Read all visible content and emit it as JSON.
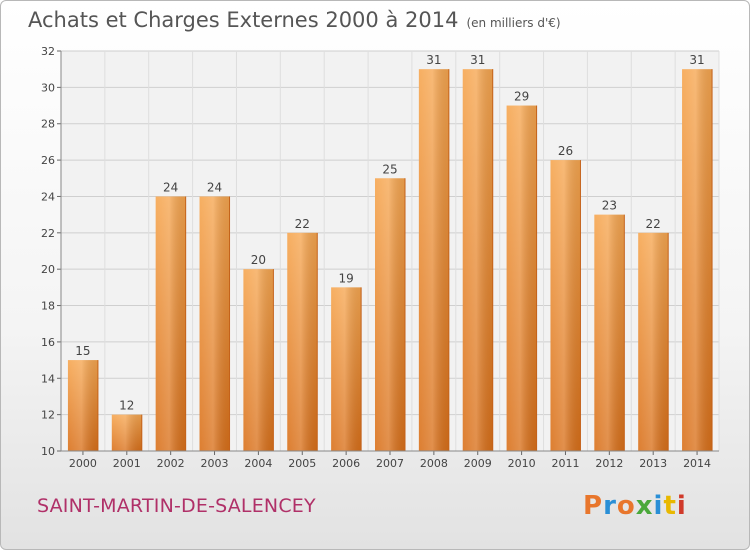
{
  "header": {
    "title": "Achats et Charges Externes 2000 à 2014",
    "unit": "(en milliers d'€)"
  },
  "footer": {
    "commune": "SAINT-MARTIN-DE-SALENCEY",
    "logo_text": "Proxiti",
    "logo_colors": [
      "#e8762c",
      "#2a8fd6",
      "#e8762c",
      "#4aa83a",
      "#2a8fd6",
      "#e8b800",
      "#d03a2a"
    ]
  },
  "chart_data": {
    "type": "bar",
    "title": "Achats et Charges Externes 2000 à 2014",
    "subtitle": "(en milliers d'€)",
    "categories": [
      "2000",
      "2001",
      "2002",
      "2003",
      "2004",
      "2005",
      "2006",
      "2007",
      "2008",
      "2009",
      "2010",
      "2011",
      "2012",
      "2013",
      "2014"
    ],
    "values": [
      15,
      12,
      24,
      24,
      20,
      22,
      19,
      25,
      31,
      31,
      29,
      26,
      23,
      22,
      31
    ],
    "ylim": [
      10,
      32
    ],
    "yticks": [
      10,
      12,
      14,
      16,
      18,
      20,
      22,
      24,
      26,
      28,
      30,
      32
    ],
    "xlabel": "",
    "ylabel": "",
    "grid": true,
    "bar_color": "#f0922e"
  }
}
